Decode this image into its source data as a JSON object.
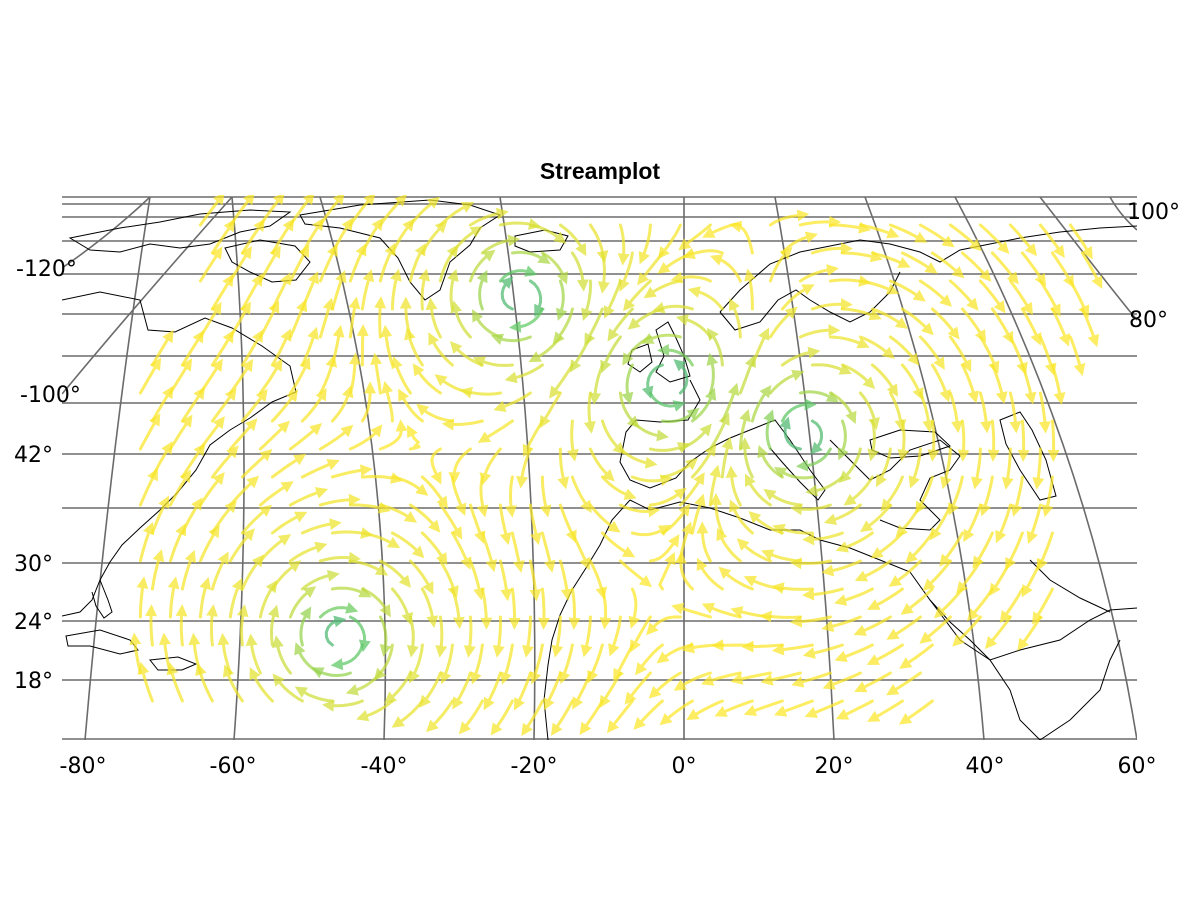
{
  "title": "Streamplot",
  "map": {
    "projection": "conic-like",
    "lon_ticks": [
      "-80°",
      "-60°",
      "-40°",
      "-20°",
      "0°",
      "20°",
      "40°",
      "60°"
    ],
    "lat_ticks_left": [
      "42°",
      "30°",
      "24°",
      "18°"
    ],
    "extra_ticks_left": [
      "-120°",
      "-100°"
    ],
    "extra_ticks_right": [
      "100°",
      "80°"
    ],
    "colormap": "viridis",
    "grid": true
  },
  "chart_data": {
    "type": "streamplot",
    "title": "Streamplot",
    "xlabel": "",
    "ylabel": "",
    "xlim": [
      -82,
      60
    ],
    "ylim": [
      10,
      80
    ],
    "colormap": [
      "#440154",
      "#3b528b",
      "#21918c",
      "#5ec962",
      "#fde725"
    ],
    "vortices": [
      {
        "lon": -22,
        "lat": 62,
        "rotation": "cyclonic"
      },
      {
        "lon": 16,
        "lat": 46,
        "rotation": "cyclonic"
      },
      {
        "lon": -46,
        "lat": 22,
        "rotation": "cyclonic"
      },
      {
        "lon": -2,
        "lat": 52,
        "rotation": "anticyclonic"
      }
    ]
  }
}
